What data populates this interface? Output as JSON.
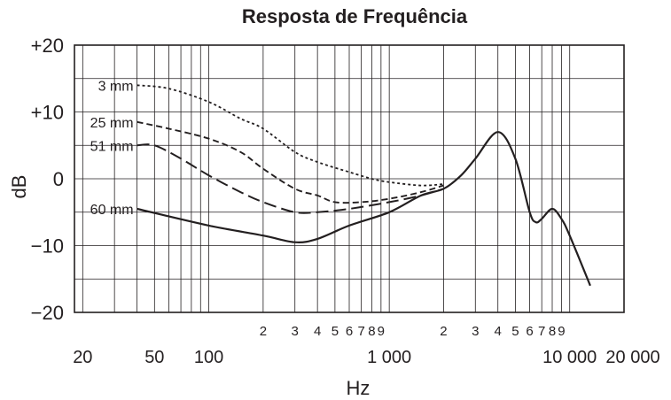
{
  "chart_data": {
    "type": "line",
    "title": "Resposta de Frequência",
    "xlabel": "Hz",
    "ylabel": "dB",
    "x_scale": "log",
    "xlim": [
      18,
      20000
    ],
    "ylim": [
      -20,
      20
    ],
    "grid": true,
    "y_ticks": [
      "+20",
      "+10",
      "0",
      "−10",
      "−20"
    ],
    "x_major_ticks": [
      {
        "value": 20,
        "label": "20"
      },
      {
        "value": 50,
        "label": "50"
      },
      {
        "value": 100,
        "label": "100"
      },
      {
        "value": 1000,
        "label": "1 000"
      },
      {
        "value": 10000,
        "label": "10 000"
      },
      {
        "value": 20000,
        "label": "20 000"
      }
    ],
    "x_minor_ticks": [
      {
        "value": 200,
        "label": "2"
      },
      {
        "value": 300,
        "label": "3"
      },
      {
        "value": 400,
        "label": "4"
      },
      {
        "value": 500,
        "label": "5"
      },
      {
        "value": 600,
        "label": "6"
      },
      {
        "value": 700,
        "label": "7"
      },
      {
        "value": 800,
        "label": "8"
      },
      {
        "value": 900,
        "label": "9"
      },
      {
        "value": 2000,
        "label": "2"
      },
      {
        "value": 3000,
        "label": "3"
      },
      {
        "value": 4000,
        "label": "4"
      },
      {
        "value": 5000,
        "label": "5"
      },
      {
        "value": 6000,
        "label": "6"
      },
      {
        "value": 7000,
        "label": "7"
      },
      {
        "value": 8000,
        "label": "8"
      },
      {
        "value": 9000,
        "label": "9"
      }
    ],
    "series": [
      {
        "name": "3 mm",
        "style": "dotted",
        "points": [
          [
            40,
            14
          ],
          [
            60,
            13.5
          ],
          [
            100,
            11.5
          ],
          [
            150,
            9
          ],
          [
            200,
            7.5
          ],
          [
            300,
            4
          ],
          [
            400,
            2.5
          ],
          [
            600,
            1
          ],
          [
            800,
            0
          ],
          [
            1000,
            -0.5
          ],
          [
            1500,
            -1
          ],
          [
            2000,
            -0.8
          ]
        ]
      },
      {
        "name": "25 mm",
        "style": "dashed",
        "points": [
          [
            40,
            8.5
          ],
          [
            60,
            7.5
          ],
          [
            100,
            6
          ],
          [
            150,
            4
          ],
          [
            200,
            1.5
          ],
          [
            300,
            -1.5
          ],
          [
            400,
            -2.5
          ],
          [
            500,
            -3.5
          ],
          [
            700,
            -3.5
          ],
          [
            1000,
            -3
          ],
          [
            1500,
            -2
          ],
          [
            2000,
            -1
          ]
        ]
      },
      {
        "name": "51 mm",
        "style": "longdash",
        "points": [
          [
            40,
            5
          ],
          [
            50,
            5
          ],
          [
            70,
            3
          ],
          [
            100,
            0.5
          ],
          [
            150,
            -2
          ],
          [
            200,
            -3.5
          ],
          [
            300,
            -5
          ],
          [
            400,
            -5
          ],
          [
            600,
            -4.5
          ],
          [
            1000,
            -3.5
          ],
          [
            1500,
            -2.5
          ],
          [
            2000,
            -1.5
          ]
        ]
      },
      {
        "name": "60 mm",
        "style": "solid",
        "points": [
          [
            40,
            -4.5
          ],
          [
            100,
            -7
          ],
          [
            200,
            -8.5
          ],
          [
            300,
            -9.5
          ],
          [
            400,
            -9
          ],
          [
            600,
            -7
          ],
          [
            1000,
            -5
          ],
          [
            1500,
            -2.5
          ],
          [
            2000,
            -1.5
          ],
          [
            2500,
            0.5
          ],
          [
            3000,
            3
          ],
          [
            4000,
            7
          ],
          [
            5000,
            3
          ],
          [
            6000,
            -5
          ],
          [
            6500,
            -6.5
          ],
          [
            7000,
            -6
          ],
          [
            8000,
            -4.5
          ],
          [
            9000,
            -6
          ],
          [
            10000,
            -8.5
          ],
          [
            13000,
            -16
          ]
        ]
      }
    ]
  }
}
